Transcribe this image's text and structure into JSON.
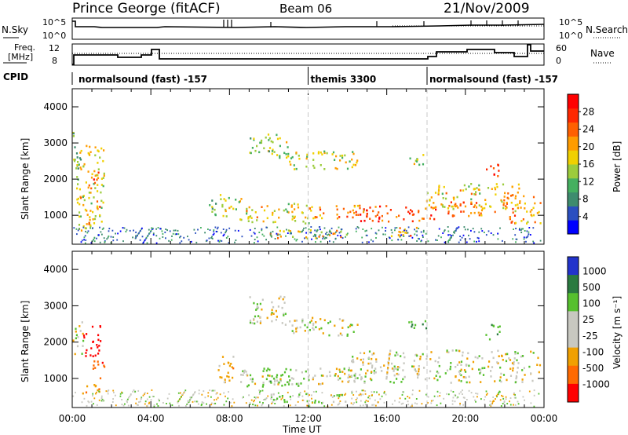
{
  "header": {
    "site": "Prince George (fitACF)",
    "beam": "Beam 06",
    "date": "21/Nov/2009"
  },
  "strips": {
    "nsky_label": "N.Sky",
    "nsky_ticks": [
      "10^5",
      "10^0"
    ],
    "nsearch_label": "N.Search",
    "nsearch_ticks": [
      "10^5",
      "10^0"
    ],
    "freq_label_1": "Freq.",
    "freq_label_2": "[MHz]",
    "freq_ticks": [
      "12",
      "8"
    ],
    "nave_label": "Nave",
    "nave_ticks": [
      "60",
      "0"
    ]
  },
  "cpid": {
    "label": "CPID",
    "segments": [
      {
        "name": "normalsound (fast) -157",
        "start_hour": 0.2,
        "end_hour": 12.0
      },
      {
        "name": "themis 3300",
        "start_hour": 12.0,
        "end_hour": 18.05
      },
      {
        "name": "normalsound (fast) -157",
        "start_hour": 18.05,
        "end_hour": 23.9
      }
    ]
  },
  "colors": {
    "power_scale": [
      "#0000ff",
      "#2a4fc0",
      "#3e8c6e",
      "#45b060",
      "#9ccc3c",
      "#f0d000",
      "#ff9c00",
      "#ff6000",
      "#ff2800",
      "#ff0000"
    ],
    "velocity_scale": [
      "#2233cc",
      "#2a7a40",
      "#56c02e",
      "#c8c8c0",
      "#c8c8c0",
      "#f0a000",
      "#ff6a00",
      "#ff0000"
    ]
  },
  "chart_data": [
    {
      "type": "heatmap",
      "name": "power",
      "ylabel": "Slant Range [km]",
      "ylim": [
        200,
        4500
      ],
      "xlim": [
        0,
        24
      ],
      "yticks": [
        "1000",
        "2000",
        "3000",
        "4000"
      ],
      "colorbar_label": "Power [dB]",
      "colorbar_ticks": [
        "4",
        "8",
        "12",
        "16",
        "20",
        "24",
        "28"
      ],
      "colorbar_range": [
        0,
        32
      ],
      "echo_regions": [
        {
          "t0": 0.0,
          "t1": 0.4,
          "r0": 1900,
          "r1": 3400,
          "level": 12
        },
        {
          "t0": 0.2,
          "t1": 1.6,
          "r0": 600,
          "r1": 3000,
          "level": 18
        },
        {
          "t0": 0.8,
          "t1": 1.3,
          "r0": 1700,
          "r1": 2300,
          "level": 26
        },
        {
          "t0": 1.2,
          "t1": 1.6,
          "r0": 1150,
          "r1": 1500,
          "level": 24
        },
        {
          "t0": 6.8,
          "t1": 7.4,
          "r0": 1000,
          "r1": 1500,
          "level": 12
        },
        {
          "t0": 7.5,
          "t1": 8.6,
          "r0": 1000,
          "r1": 1600,
          "level": 16
        },
        {
          "t0": 8.5,
          "t1": 12.0,
          "r0": 800,
          "r1": 1350,
          "level": 18
        },
        {
          "t0": 9.0,
          "t1": 11.0,
          "r0": 2600,
          "r1": 3300,
          "level": 14
        },
        {
          "t0": 11.0,
          "t1": 14.5,
          "r0": 2300,
          "r1": 2800,
          "level": 16
        },
        {
          "t0": 10.0,
          "t1": 14.0,
          "r0": 380,
          "r1": 620,
          "level": 20
        },
        {
          "t0": 12.0,
          "t1": 15.0,
          "r0": 900,
          "r1": 1300,
          "level": 22
        },
        {
          "t0": 14.5,
          "t1": 18.5,
          "r0": 850,
          "r1": 1300,
          "level": 28
        },
        {
          "t0": 17.0,
          "t1": 18.0,
          "r0": 2400,
          "r1": 2700,
          "level": 14
        },
        {
          "t0": 16.0,
          "t1": 17.5,
          "r0": 400,
          "r1": 700,
          "level": 22
        },
        {
          "t0": 18.0,
          "t1": 23.0,
          "r0": 1200,
          "r1": 1900,
          "level": 18
        },
        {
          "t0": 19.0,
          "t1": 21.5,
          "r0": 1000,
          "r1": 1400,
          "level": 24
        },
        {
          "t0": 21.0,
          "t1": 21.8,
          "r0": 2100,
          "r1": 2500,
          "level": 26
        },
        {
          "t0": 22.0,
          "t1": 23.8,
          "r0": 800,
          "r1": 1600,
          "level": 22
        }
      ]
    },
    {
      "type": "heatmap",
      "name": "velocity",
      "ylabel": "Slant Range [km]",
      "xlabel": "Time UT",
      "ylim": [
        200,
        4500
      ],
      "xlim": [
        0,
        24
      ],
      "yticks": [
        "1000",
        "2000",
        "3000",
        "4000"
      ],
      "xticks": [
        "00:00",
        "04:00",
        "08:00",
        "12:00",
        "16:00",
        "20:00",
        "00:00"
      ],
      "colorbar_label": "Velocity [m s⁻¹]",
      "colorbar_ticks": [
        "1000",
        "500",
        "100",
        "25",
        "-25",
        "-100",
        "-500",
        "-1000"
      ],
      "echo_regions": [
        {
          "t0": 0.0,
          "t1": 0.6,
          "r0": 1700,
          "r1": 2600,
          "vel": 0
        },
        {
          "t0": 0.5,
          "t1": 1.4,
          "r0": 1600,
          "r1": 2500,
          "vel": -1000
        },
        {
          "t0": 1.0,
          "t1": 1.6,
          "r0": 1000,
          "r1": 1600,
          "vel": -600
        },
        {
          "t0": 0.5,
          "t1": 1.5,
          "r0": 600,
          "r1": 900,
          "vel": -200
        },
        {
          "t0": 7.4,
          "t1": 8.3,
          "r0": 900,
          "r1": 1700,
          "vel": -150
        },
        {
          "t0": 8.5,
          "t1": 12.0,
          "r0": 800,
          "r1": 1300,
          "vel": 0
        },
        {
          "t0": 9.6,
          "t1": 11.0,
          "r0": 750,
          "r1": 1300,
          "vel": 150
        },
        {
          "t0": 9.0,
          "t1": 11.0,
          "r0": 2500,
          "r1": 3300,
          "vel": 0
        },
        {
          "t0": 11.0,
          "t1": 14.5,
          "r0": 2200,
          "r1": 2700,
          "vel": 0
        },
        {
          "t0": 12.0,
          "t1": 15.0,
          "r0": 850,
          "r1": 1300,
          "vel": 0
        },
        {
          "t0": 14.0,
          "t1": 23.8,
          "r0": 900,
          "r1": 1800,
          "vel": 0
        },
        {
          "t0": 10.0,
          "t1": 14.0,
          "r0": 350,
          "r1": 600,
          "vel": 120
        },
        {
          "t0": 17.0,
          "t1": 18.0,
          "r0": 2400,
          "r1": 2700,
          "vel": 300
        },
        {
          "t0": 21.0,
          "t1": 21.8,
          "r0": 2100,
          "r1": 2500,
          "vel": 200
        }
      ]
    }
  ]
}
